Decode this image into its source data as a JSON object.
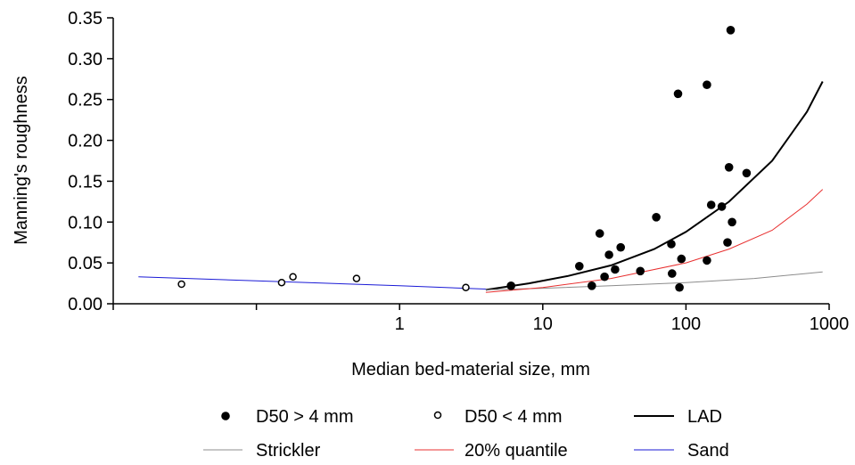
{
  "chart_data": {
    "type": "scatter",
    "title": "",
    "xlabel": "Median bed-material size, mm",
    "ylabel": "Manning's roughness",
    "x_scale": "log",
    "xlim": [
      0.01,
      1000
    ],
    "ylim": [
      0,
      0.35
    ],
    "x_ticks": [
      0.01,
      0.1,
      1,
      10,
      100,
      1000
    ],
    "x_tick_labels": [
      "",
      "",
      "1",
      "10",
      "100",
      "1000"
    ],
    "y_ticks": [
      0,
      0.05,
      0.1,
      0.15,
      0.2,
      0.25,
      0.3,
      0.35
    ],
    "y_tick_labels": [
      "0.00",
      "0.05",
      "0.10",
      "0.15",
      "0.20",
      "0.25",
      "0.30",
      "0.35"
    ],
    "grid": false,
    "legend_position": "bottom",
    "series": [
      {
        "name": "D50 > 4 mm",
        "kind": "points",
        "marker": "filled-circle",
        "color": "#000000",
        "points": [
          [
            6.0,
            0.022
          ],
          [
            18,
            0.046
          ],
          [
            22,
            0.022
          ],
          [
            25,
            0.086
          ],
          [
            27,
            0.033
          ],
          [
            29,
            0.06
          ],
          [
            32,
            0.042
          ],
          [
            35,
            0.069
          ],
          [
            48,
            0.04
          ],
          [
            62,
            0.106
          ],
          [
            79,
            0.073
          ],
          [
            80,
            0.037
          ],
          [
            88,
            0.257
          ],
          [
            90,
            0.02
          ],
          [
            93,
            0.055
          ],
          [
            140,
            0.268
          ],
          [
            140,
            0.053
          ],
          [
            150,
            0.121
          ],
          [
            178,
            0.119
          ],
          [
            195,
            0.075
          ],
          [
            200,
            0.167
          ],
          [
            205,
            0.335
          ],
          [
            210,
            0.1
          ],
          [
            265,
            0.16
          ]
        ]
      },
      {
        "name": "D50 < 4 mm",
        "kind": "points",
        "marker": "open-circle",
        "color": "#000000",
        "points": [
          [
            0.03,
            0.024
          ],
          [
            0.15,
            0.026
          ],
          [
            0.18,
            0.033
          ],
          [
            0.5,
            0.031
          ],
          [
            2.9,
            0.02
          ]
        ]
      },
      {
        "name": "LAD",
        "kind": "line",
        "color": "#000000",
        "points": [
          [
            4,
            0.017
          ],
          [
            8,
            0.025
          ],
          [
            15,
            0.034
          ],
          [
            30,
            0.047
          ],
          [
            60,
            0.067
          ],
          [
            100,
            0.088
          ],
          [
            200,
            0.125
          ],
          [
            400,
            0.175
          ],
          [
            700,
            0.235
          ],
          [
            900,
            0.272
          ]
        ]
      },
      {
        "name": "Strickler",
        "kind": "line",
        "color": "#8c8c8c",
        "points": [
          [
            4,
            0.017
          ],
          [
            10,
            0.019
          ],
          [
            30,
            0.022
          ],
          [
            100,
            0.026
          ],
          [
            300,
            0.031
          ],
          [
            600,
            0.036
          ],
          [
            900,
            0.039
          ]
        ]
      },
      {
        "name": "20% quantile",
        "kind": "line",
        "color": "#e83030",
        "points": [
          [
            4,
            0.014
          ],
          [
            10,
            0.02
          ],
          [
            30,
            0.031
          ],
          [
            100,
            0.05
          ],
          [
            200,
            0.067
          ],
          [
            400,
            0.09
          ],
          [
            700,
            0.122
          ],
          [
            900,
            0.14
          ]
        ]
      },
      {
        "name": "Sand",
        "kind": "line",
        "color": "#1a1ad6",
        "points": [
          [
            0.015,
            0.033
          ],
          [
            0.1,
            0.028
          ],
          [
            1,
            0.022
          ],
          [
            4,
            0.018
          ]
        ]
      }
    ]
  }
}
